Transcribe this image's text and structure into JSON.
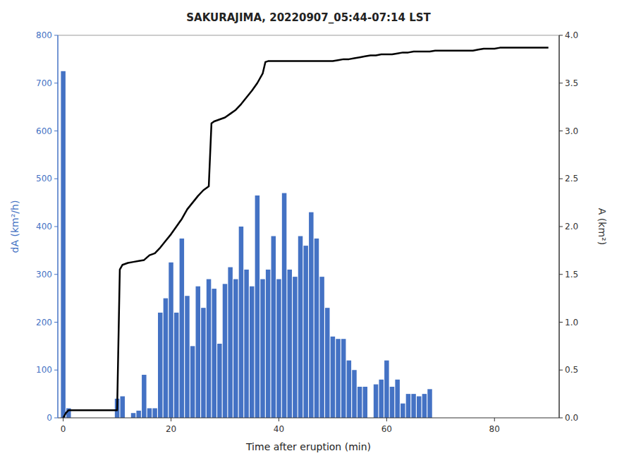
{
  "chart_data": {
    "type": "bar",
    "title": "SAKURAJIMA, 20220907_05:44-07:14 LST",
    "xlabel": "Time after eruption (min)",
    "ylabel": "dA (km²/h)",
    "y2label": "A (km²)",
    "grid": false,
    "xlim": [
      -1,
      92
    ],
    "xticks": [
      0,
      20,
      40,
      60,
      80
    ],
    "ylim": [
      0,
      800
    ],
    "yticks": [
      0,
      100,
      200,
      300,
      400,
      500,
      600,
      700,
      800
    ],
    "y2lim": [
      0,
      4
    ],
    "y2ticks": [
      {
        "value": 0,
        "label": "0.0"
      },
      0.5,
      {
        "value": 1.0,
        "label": "1.0"
      },
      1.5,
      {
        "value": 2.0,
        "label": "2.0"
      },
      2.5,
      {
        "value": 3.0,
        "label": "3.0"
      },
      3.5,
      {
        "value": 4.0,
        "label": "4.0"
      }
    ],
    "series": [
      {
        "type": "bar",
        "color": "#4472C4",
        "x": [
          0,
          1,
          2,
          3,
          4,
          5,
          6,
          7,
          8,
          9,
          10,
          11,
          12,
          13,
          14,
          15,
          16,
          17,
          18,
          19,
          20,
          21,
          22,
          23,
          24,
          25,
          26,
          27,
          28,
          29,
          30,
          31,
          32,
          33,
          34,
          35,
          36,
          37,
          38,
          39,
          40,
          41,
          42,
          43,
          44,
          45,
          46,
          47,
          48,
          49,
          50,
          51,
          52,
          53,
          54,
          55,
          56,
          57,
          58,
          59,
          60,
          61,
          62,
          63,
          64,
          65,
          66,
          67,
          68
        ],
        "values": [
          725,
          20,
          0,
          0,
          0,
          0,
          0,
          0,
          0,
          0,
          40,
          45,
          0,
          10,
          15,
          90,
          20,
          20,
          220,
          250,
          325,
          220,
          375,
          255,
          150,
          275,
          230,
          290,
          270,
          155,
          280,
          315,
          290,
          400,
          310,
          275,
          465,
          290,
          310,
          380,
          290,
          470,
          310,
          295,
          380,
          360,
          430,
          375,
          295,
          230,
          170,
          165,
          165,
          120,
          100,
          65,
          65,
          0,
          70,
          80,
          120,
          65,
          80,
          30,
          50,
          50,
          45,
          50,
          60
        ]
      },
      {
        "type": "line",
        "color": "#000000",
        "axis": "y2",
        "x": [
          0,
          0.5,
          1,
          2,
          3,
          4,
          5,
          6,
          7,
          8,
          9,
          10,
          10.5,
          11,
          12,
          13,
          14,
          15,
          16,
          17,
          18,
          19,
          20,
          21,
          22,
          23,
          24,
          25,
          26,
          27,
          27.5,
          28,
          29,
          30,
          31,
          32,
          33,
          34,
          35,
          36,
          37,
          37.5,
          38,
          39,
          40,
          41,
          42,
          43,
          44,
          45,
          46,
          47,
          48,
          49,
          50,
          51,
          52,
          53,
          54,
          55,
          56,
          57,
          58,
          59,
          60,
          61,
          62,
          63,
          64,
          65,
          66,
          67,
          68,
          69,
          70,
          71,
          72,
          73,
          74,
          75,
          76,
          77,
          78,
          79,
          80,
          81,
          82,
          83,
          84,
          85,
          86,
          87,
          88,
          89,
          90
        ],
        "values": [
          0.0,
          0.05,
          0.08,
          0.08,
          0.08,
          0.08,
          0.08,
          0.08,
          0.08,
          0.08,
          0.08,
          0.08,
          1.55,
          1.6,
          1.62,
          1.63,
          1.64,
          1.65,
          1.7,
          1.72,
          1.78,
          1.85,
          1.92,
          2.0,
          2.08,
          2.18,
          2.25,
          2.32,
          2.38,
          2.42,
          3.08,
          3.1,
          3.12,
          3.14,
          3.18,
          3.22,
          3.28,
          3.35,
          3.42,
          3.5,
          3.6,
          3.72,
          3.73,
          3.73,
          3.73,
          3.73,
          3.73,
          3.73,
          3.73,
          3.73,
          3.73,
          3.73,
          3.73,
          3.73,
          3.73,
          3.74,
          3.75,
          3.75,
          3.76,
          3.77,
          3.78,
          3.79,
          3.79,
          3.8,
          3.8,
          3.8,
          3.81,
          3.82,
          3.82,
          3.83,
          3.83,
          3.83,
          3.83,
          3.84,
          3.84,
          3.84,
          3.84,
          3.84,
          3.84,
          3.84,
          3.84,
          3.85,
          3.86,
          3.86,
          3.86,
          3.87,
          3.87,
          3.87,
          3.87,
          3.87,
          3.87,
          3.87,
          3.87,
          3.87,
          3.87
        ]
      }
    ]
  }
}
